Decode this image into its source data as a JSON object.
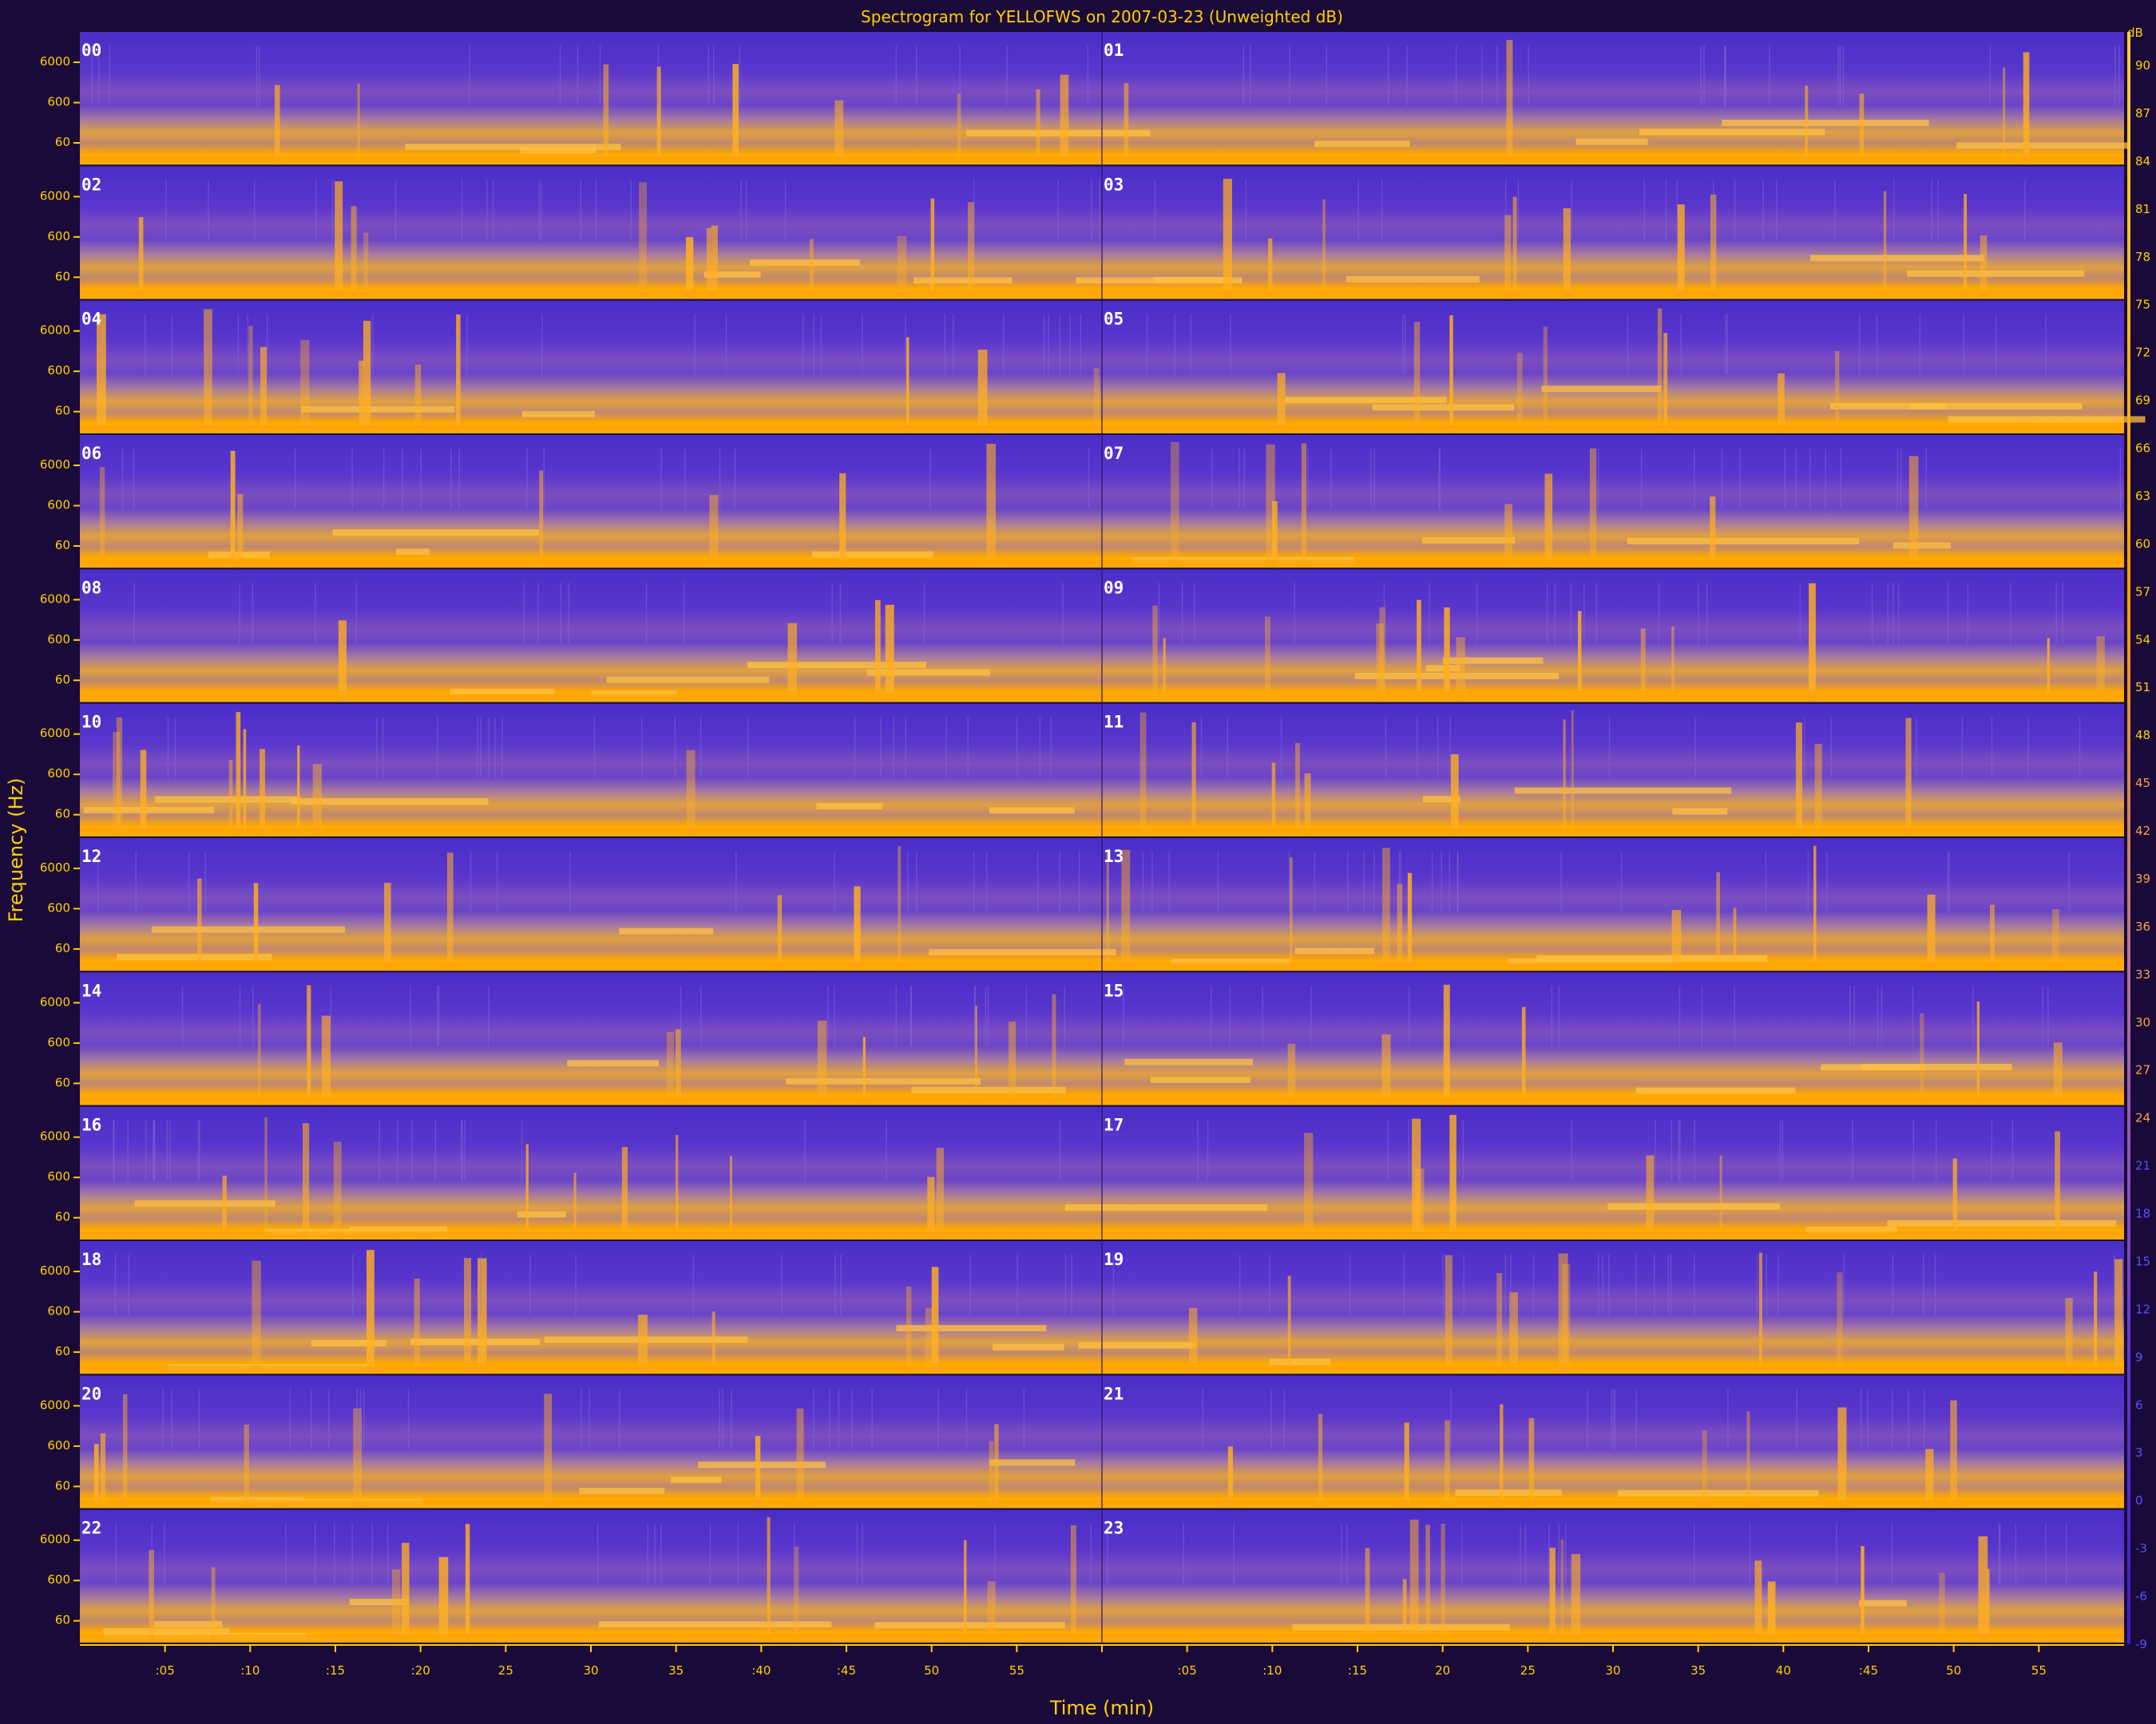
{
  "chart_data": {
    "type": "heatmap",
    "title": "Spectrogram for YELLOFWS on 2007-03-23 (Unweighted dB)",
    "xlabel": "Time (min)",
    "ylabel": "Frequency (Hz)",
    "x_tick_labels": [
      ":05",
      ":10",
      ":15",
      ":20",
      "25",
      "30",
      "35",
      ":40",
      ":45",
      "50",
      "55",
      "",
      ":05",
      ":10",
      ":15",
      "20",
      "25",
      "30",
      "35",
      "40",
      ":45",
      "50",
      "55"
    ],
    "y_tick_labels": [
      "6000",
      "600",
      "60"
    ],
    "hour_labels": [
      "00",
      "01",
      "02",
      "03",
      "04",
      "05",
      "06",
      "07",
      "08",
      "09",
      "10",
      "11",
      "12",
      "13",
      "14",
      "15",
      "16",
      "17",
      "18",
      "19",
      "20",
      "21",
      "22",
      "23"
    ],
    "colorbar": {
      "unit": "dB",
      "labels": [
        "90",
        "87",
        "84",
        "81",
        "78",
        "75",
        "72",
        "69",
        "66",
        "63",
        "60",
        "57",
        "54",
        "51",
        "48",
        "45",
        "42",
        "39",
        "36",
        "33",
        "30",
        "27",
        "24",
        "21",
        "18",
        "15",
        "12",
        "9",
        "6",
        "3",
        "0",
        "-3",
        "-6",
        "-9"
      ],
      "range": [
        -9,
        93
      ],
      "colors": [
        "#3a1ec8",
        "#6a3cd0",
        "#b070a0",
        "#ffa000",
        "#ffd040"
      ]
    },
    "rows": 12,
    "columns_per_row": 2,
    "minutes_per_panel": 60
  },
  "colors": {
    "background": "#1a0a3a",
    "low": "#4a2ad0",
    "mid": "#9060b8",
    "high": "#ffa800",
    "text": "#ffd000"
  }
}
